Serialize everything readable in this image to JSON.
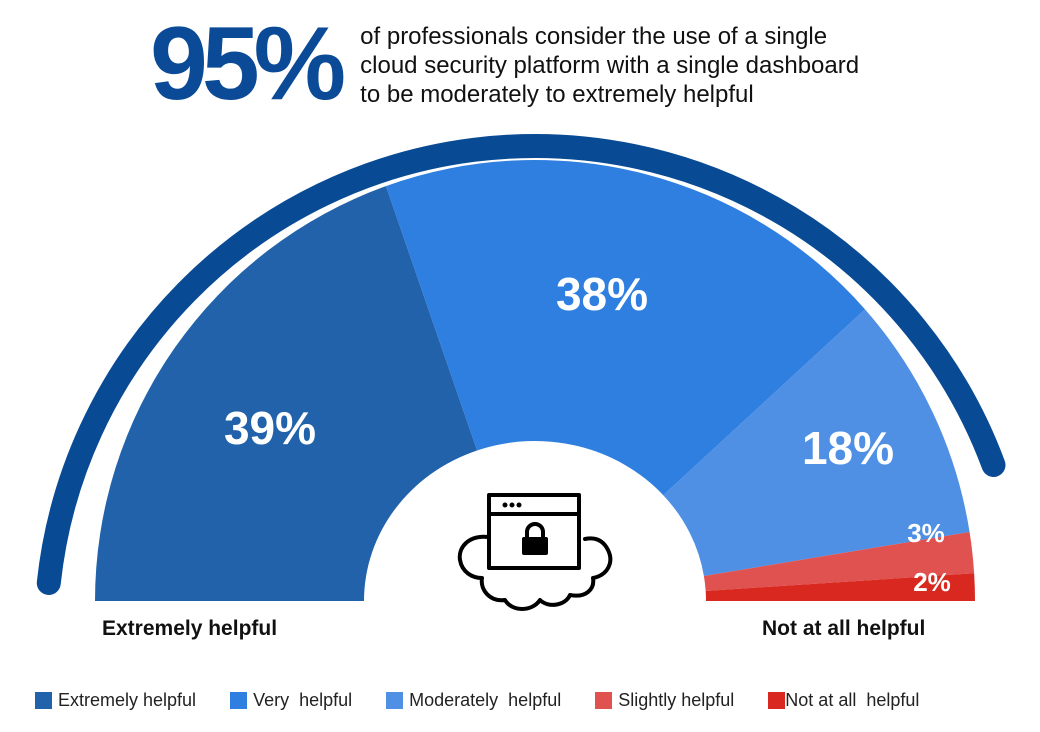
{
  "headline": {
    "stat": "95%",
    "lines": [
      "of professionals consider the use of a single",
      "cloud security platform with a single dashboard",
      "to be moderately to extremely helpful"
    ]
  },
  "axis_labels": {
    "left": "Extremely helpful",
    "right": "Not at all helpful"
  },
  "center_icon": "cloud-browser-lock-icon",
  "colors": {
    "outer_arc": "#084a94",
    "extremely": "#2162ab",
    "very": "#2f7fe0",
    "moderately": "#4f90e4",
    "slightly": "#e05250",
    "not_at_all": "#d8281f"
  },
  "legend": [
    {
      "label": "Extremely helpful",
      "color": "#2162ab"
    },
    {
      "label": "Very  helpful",
      "color": "#2f7fe0"
    },
    {
      "label": "Moderately  helpful",
      "color": "#4f90e4"
    },
    {
      "label": "Slightly helpful",
      "color": "#e05250"
    },
    {
      "label": "Not at all  helpful",
      "color": "#d8281f"
    }
  ],
  "chart_data": {
    "type": "pie",
    "subtype": "semi-donut",
    "title": "95% of professionals consider the use of a single cloud security platform with a single dashboard to be moderately to extremely helpful",
    "categories": [
      "Extremely helpful",
      "Very helpful",
      "Moderately helpful",
      "Slightly helpful",
      "Not at all helpful"
    ],
    "values": [
      39,
      38,
      18,
      3,
      2
    ],
    "labels": [
      "39%",
      "38%",
      "18%",
      "3%",
      "2%"
    ],
    "colors": [
      "#2162ab",
      "#2f7fe0",
      "#4f90e4",
      "#e05250",
      "#d8281f"
    ],
    "legend_position": "bottom",
    "endpoint_labels": [
      "Extremely helpful",
      "Not at all helpful"
    ]
  }
}
